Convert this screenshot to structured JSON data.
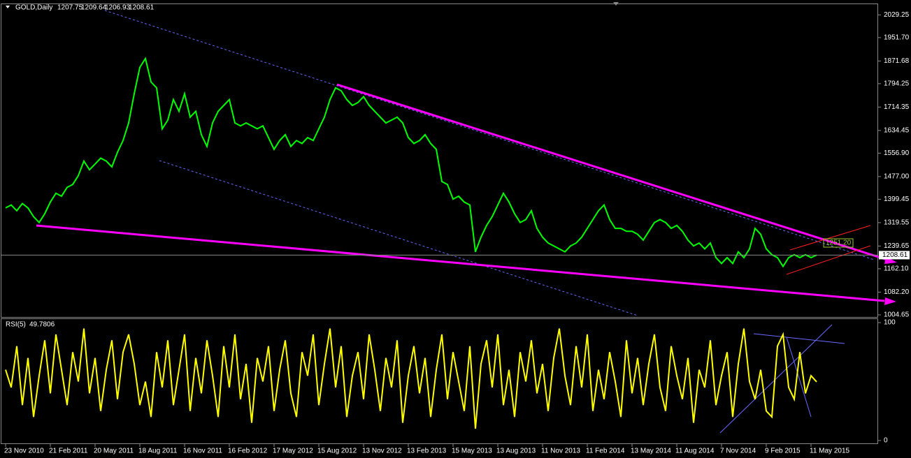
{
  "chart_data": [
    {
      "type": "line",
      "title": "GOLD,Daily",
      "ohlc": [
        1207.75,
        1209.64,
        1206.93,
        1208.61
      ],
      "current_price": 1208.61,
      "annotation": "1251.20",
      "categories": [
        "23 Nov 2010",
        null,
        null,
        null,
        null,
        null,
        null,
        null,
        "21 Feb 2011",
        null,
        null,
        null,
        null,
        null,
        null,
        null,
        "20 May 2011",
        null,
        null,
        null,
        null,
        null,
        null,
        null,
        "18 Aug 2011",
        null,
        null,
        null,
        null,
        null,
        null,
        null,
        "16 Nov 2011",
        null,
        null,
        null,
        null,
        null,
        null,
        null,
        "16 Feb 2012",
        null,
        null,
        null,
        null,
        null,
        null,
        null,
        "17 May 2012",
        null,
        null,
        null,
        null,
        null,
        null,
        null,
        "15 Aug 2012",
        null,
        null,
        null,
        null,
        null,
        null,
        null,
        "13 Nov 2012",
        null,
        null,
        null,
        null,
        null,
        null,
        null,
        "13 Feb 2013",
        null,
        null,
        null,
        null,
        null,
        null,
        null,
        "15 May 2013",
        null,
        null,
        null,
        null,
        null,
        null,
        null,
        "13 Aug 2013",
        null,
        null,
        null,
        null,
        null,
        null,
        null,
        "11 Nov 2013",
        null,
        null,
        null,
        null,
        null,
        null,
        null,
        "11 Feb 2014",
        null,
        null,
        null,
        null,
        null,
        null,
        null,
        "13 May 2014",
        null,
        null,
        null,
        null,
        null,
        null,
        null,
        "11 Aug 2014",
        null,
        null,
        null,
        null,
        null,
        null,
        null,
        "7 Nov 2014",
        null,
        null,
        null,
        null,
        null,
        null,
        null,
        "9 Feb 2015",
        null,
        null,
        null,
        null,
        null,
        null,
        null,
        "11 May 2015",
        null
      ],
      "series": [
        {
          "name": "GOLD",
          "color": "#00ff00",
          "values": [
            1370,
            1380,
            1360,
            1385,
            1370,
            1340,
            1320,
            1350,
            1390,
            1420,
            1410,
            1440,
            1450,
            1480,
            1530,
            1500,
            1520,
            1540,
            1530,
            1510,
            1560,
            1600,
            1660,
            1760,
            1850,
            1880,
            1800,
            1780,
            1640,
            1670,
            1740,
            1700,
            1760,
            1680,
            1700,
            1620,
            1580,
            1660,
            1700,
            1720,
            1740,
            1660,
            1650,
            1660,
            1650,
            1640,
            1650,
            1610,
            1570,
            1600,
            1620,
            1580,
            1600,
            1590,
            1610,
            1600,
            1640,
            1680,
            1740,
            1780,
            1770,
            1740,
            1720,
            1730,
            1750,
            1720,
            1700,
            1680,
            1660,
            1670,
            1680,
            1660,
            1610,
            1590,
            1600,
            1620,
            1590,
            1570,
            1460,
            1450,
            1400,
            1410,
            1390,
            1380,
            1220,
            1270,
            1310,
            1340,
            1380,
            1420,
            1390,
            1350,
            1320,
            1330,
            1360,
            1300,
            1270,
            1250,
            1240,
            1230,
            1220,
            1240,
            1250,
            1270,
            1300,
            1330,
            1360,
            1380,
            1330,
            1300,
            1300,
            1290,
            1290,
            1280,
            1260,
            1290,
            1320,
            1330,
            1320,
            1300,
            1310,
            1290,
            1260,
            1240,
            1250,
            1230,
            1250,
            1200,
            1180,
            1200,
            1180,
            1220,
            1200,
            1230,
            1300,
            1280,
            1230,
            1210,
            1200,
            1170,
            1200,
            1210,
            1200,
            1210,
            1200,
            1208.61
          ]
        }
      ],
      "ylim": [
        995,
        2061
      ],
      "yticks": [
        2029.25,
        {
          "value": 1951.7,
          "label": "1951.70"
        },
        1871.68,
        1794.25,
        1714.35,
        1634.45,
        {
          "value": 1556.9,
          "label": "1556.90"
        },
        {
          "value": 1477,
          "label": "1477.00"
        },
        1399.45,
        1319.55,
        1239.65,
        {
          "value": 1162.1,
          "label": "1162.10"
        },
        {
          "value": 1082.2,
          "label": "1082.20"
        },
        1004.65
      ]
    },
    {
      "type": "line",
      "title": "RSI(5)",
      "last_value": 49.7806,
      "series": [
        {
          "name": "RSI(5)",
          "color": "#ffff00",
          "values": [
            60,
            45,
            80,
            30,
            70,
            20,
            55,
            85,
            40,
            90,
            60,
            30,
            75,
            50,
            95,
            40,
            70,
            25,
            60,
            85,
            35,
            75,
            90,
            65,
            30,
            50,
            20,
            75,
            45,
            85,
            30,
            60,
            90,
            25,
            70,
            40,
            85,
            55,
            20,
            80,
            45,
            90,
            35,
            65,
            15,
            70,
            50,
            80,
            25,
            60,
            85,
            40,
            20,
            75,
            55,
            90,
            30,
            65,
            95,
            45,
            80,
            20,
            55,
            75,
            35,
            90,
            60,
            25,
            70,
            45,
            85,
            15,
            55,
            80,
            40,
            70,
            20,
            60,
            90,
            35,
            75,
            50,
            25,
            80,
            10,
            65,
            85,
            45,
            90,
            30,
            60,
            20,
            75,
            50,
            85,
            40,
            65,
            25,
            70,
            95,
            55,
            30,
            80,
            45,
            90,
            25,
            60,
            35,
            75,
            50,
            20,
            85,
            40,
            70,
            30,
            65,
            90,
            45,
            25,
            80,
            55,
            35,
            70,
            15,
            60,
            45,
            85,
            30,
            55,
            75,
            20,
            65,
            95,
            50,
            35,
            60,
            25,
            20,
            80,
            90,
            45,
            35,
            75,
            40,
            55,
            49.7806
          ]
        }
      ],
      "ylim": [
        -3,
        103
      ],
      "yticks": [
        100,
        0
      ]
    }
  ]
}
